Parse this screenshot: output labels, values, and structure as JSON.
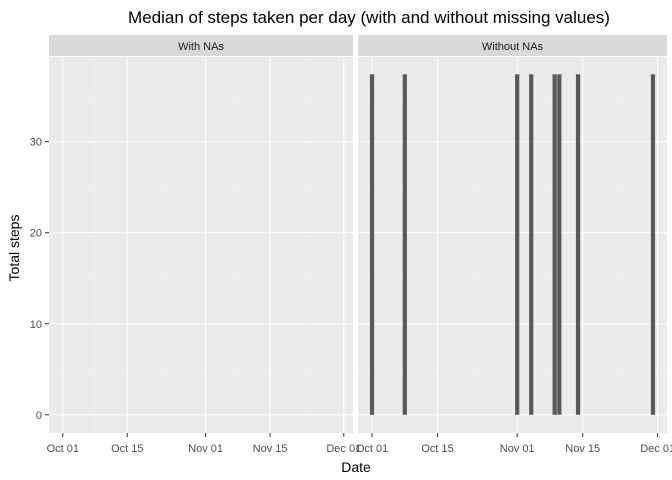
{
  "chart_data": {
    "type": "bar",
    "title": "Median of steps taken per day (with and without missing values)",
    "xlabel": "Date",
    "ylabel": "Total steps",
    "x_ticks": [
      "Oct 01",
      "Oct 15",
      "Nov 01",
      "Nov 15",
      "Dec 01"
    ],
    "x_range": [
      "2012-09-28",
      "2012-12-03"
    ],
    "y_ticks": [
      0,
      10,
      20,
      30
    ],
    "ylim": [
      -2,
      39.3
    ],
    "grid": true,
    "panels": [
      {
        "strip_label": "With NAs",
        "bars": []
      },
      {
        "strip_label": "Without NAs",
        "bars": [
          {
            "date": "2012-10-01",
            "value": 37.4
          },
          {
            "date": "2012-10-08",
            "value": 37.4
          },
          {
            "date": "2012-11-01",
            "value": 37.4
          },
          {
            "date": "2012-11-04",
            "value": 37.4
          },
          {
            "date": "2012-11-09",
            "value": 37.4
          },
          {
            "date": "2012-11-10",
            "value": 37.4
          },
          {
            "date": "2012-11-14",
            "value": 37.4
          },
          {
            "date": "2012-11-30",
            "value": 37.4
          }
        ]
      }
    ],
    "colors": {
      "panel_background": "#ebebeb",
      "strip_background": "#d9d9d9",
      "grid_major": "#ffffff",
      "grid_minor": "#f2f2f2",
      "bar": "#595959",
      "axis_text": "#4d4d4d",
      "text": "#000000"
    }
  }
}
